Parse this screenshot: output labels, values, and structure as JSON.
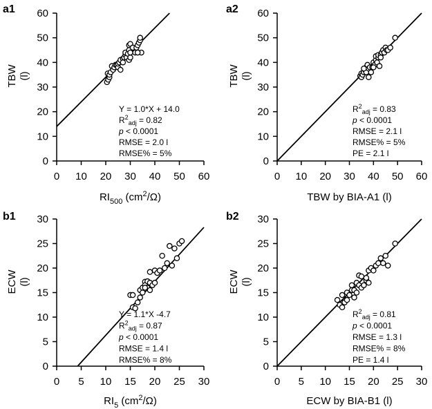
{
  "chart_data": [
    {
      "panel": "a1",
      "type": "scatter",
      "xlabel": "RI500 (cm2/Ω)",
      "xlabel_parts": {
        "base": "RI",
        "sub": "500",
        "rest1": " (cm",
        "sup": "2",
        "rest2": "/Ω)"
      },
      "ylabel_lines": [
        "TBW",
        "(l)"
      ],
      "xlim": [
        0,
        60
      ],
      "ylim": [
        0,
        60
      ],
      "xticks": [
        0,
        10,
        20,
        30,
        40,
        50,
        60
      ],
      "yticks": [
        0,
        10,
        20,
        30,
        40,
        50,
        60
      ],
      "line": {
        "slope": 1.0,
        "intercept": 14.0,
        "x_range": [
          0,
          46
        ]
      },
      "stats": [
        {
          "key": "eq",
          "text": "Y = 1.0*X + 14.0"
        },
        {
          "key": "r2",
          "pre": "R",
          "sup": "2",
          "sub": "adj",
          "post": " = 0.82"
        },
        {
          "key": "p",
          "italic": "p",
          "post": " < 0.0001"
        },
        {
          "key": "rmse",
          "text": "RMSE = 2.0 l"
        },
        {
          "key": "rmsep",
          "text": "RMSE% = 5%"
        }
      ],
      "points": [
        [
          20.5,
          32
        ],
        [
          21,
          33
        ],
        [
          21.5,
          34
        ],
        [
          20.8,
          35.5
        ],
        [
          21.5,
          35
        ],
        [
          22,
          36
        ],
        [
          22.5,
          38.5
        ],
        [
          23,
          37
        ],
        [
          23.5,
          38
        ],
        [
          24,
          39
        ],
        [
          24.5,
          39
        ],
        [
          25,
          38
        ],
        [
          25,
          39.5
        ],
        [
          25.5,
          40
        ],
        [
          26,
          37
        ],
        [
          26.5,
          40.5
        ],
        [
          26,
          41
        ],
        [
          27,
          41.5
        ],
        [
          27,
          40
        ],
        [
          27.5,
          42
        ],
        [
          28,
          43
        ],
        [
          28,
          44
        ],
        [
          28.5,
          42
        ],
        [
          29,
          43.5
        ],
        [
          29.5,
          41
        ],
        [
          30,
          42
        ],
        [
          29.5,
          45
        ],
        [
          29.5,
          47
        ],
        [
          30,
          47.5
        ],
        [
          31,
          46
        ],
        [
          32,
          44
        ],
        [
          32.5,
          46
        ],
        [
          33,
          47
        ],
        [
          33.5,
          48
        ],
        [
          34,
          49
        ],
        [
          34,
          50
        ],
        [
          34.5,
          44
        ],
        [
          33,
          44
        ],
        [
          30,
          44
        ]
      ]
    },
    {
      "panel": "a2",
      "type": "scatter",
      "xlabel": "TBW by BIA-A1 (l)",
      "ylabel_lines": [
        "TBW",
        "(l)"
      ],
      "xlim": [
        0,
        60
      ],
      "ylim": [
        0,
        60
      ],
      "xticks": [
        0,
        10,
        20,
        30,
        40,
        50,
        60
      ],
      "yticks": [
        0,
        10,
        20,
        30,
        40,
        50,
        60
      ],
      "line": {
        "slope": 1.0,
        "intercept": 0,
        "x_range": [
          0,
          60
        ]
      },
      "stats": [
        {
          "key": "r2",
          "pre": "R",
          "sup": "2",
          "sub": "adj",
          "post": " = 0.83"
        },
        {
          "key": "p",
          "italic": "p",
          "post": " < 0.0001"
        },
        {
          "key": "rmse",
          "text": "RMSE = 2.1 l"
        },
        {
          "key": "rmsep",
          "text": "RMSE% = 5%"
        },
        {
          "key": "pe",
          "text": "PE = 2.1 l"
        }
      ],
      "points": [
        [
          34.5,
          34.5
        ],
        [
          35,
          35.5
        ],
        [
          35,
          34
        ],
        [
          35.5,
          35
        ],
        [
          36,
          36
        ],
        [
          36.5,
          37
        ],
        [
          37,
          36
        ],
        [
          37,
          38
        ],
        [
          37.5,
          39
        ],
        [
          38,
          37.5
        ],
        [
          38.5,
          38
        ],
        [
          38,
          34
        ],
        [
          39,
          36
        ],
        [
          39.5,
          38
        ],
        [
          40,
          40
        ],
        [
          40.5,
          39
        ],
        [
          41,
          41
        ],
        [
          41,
          42.5
        ],
        [
          41.5,
          40
        ],
        [
          42,
          42
        ],
        [
          42.5,
          38.5
        ],
        [
          42,
          43
        ],
        [
          43,
          43
        ],
        [
          43.5,
          44
        ],
        [
          44,
          45
        ],
        [
          44.5,
          44
        ],
        [
          45,
          46
        ],
        [
          45.5,
          45
        ],
        [
          46,
          45
        ],
        [
          47,
          46
        ],
        [
          49,
          50
        ],
        [
          36,
          37.5
        ],
        [
          40,
          38
        ],
        [
          43,
          42
        ]
      ]
    },
    {
      "panel": "b1",
      "type": "scatter",
      "xlabel": "RI5 (cm2/Ω)",
      "xlabel_parts": {
        "base": "RI",
        "sub": "5",
        "rest1": " (cm",
        "sup": "2",
        "rest2": "/Ω)"
      },
      "ylabel_lines": [
        "ECW",
        "(l)"
      ],
      "xlim": [
        0,
        30
      ],
      "ylim": [
        0,
        30
      ],
      "xticks": [
        0,
        5,
        10,
        15,
        20,
        25,
        30
      ],
      "yticks": [
        0,
        5,
        10,
        15,
        20,
        25,
        30
      ],
      "line": {
        "slope": 1.1,
        "intercept": -4.7,
        "x_range": [
          4.3,
          30
        ]
      },
      "stats": [
        {
          "key": "eq",
          "text": "Y = 1.1*X -4.7"
        },
        {
          "key": "r2",
          "pre": "R",
          "sup": "2",
          "sub": "adj",
          "post": " = 0.87"
        },
        {
          "key": "p",
          "italic": "p",
          "post": " < 0.0001"
        },
        {
          "key": "rmse",
          "text": "RMSE = 1.4 l"
        },
        {
          "key": "rmsep",
          "text": "RMSE% = 8%"
        }
      ],
      "points": [
        [
          15,
          14.5
        ],
        [
          15.5,
          14.5
        ],
        [
          15.5,
          12
        ],
        [
          16,
          11.8
        ],
        [
          16.5,
          13
        ],
        [
          17,
          14
        ],
        [
          17,
          15.5
        ],
        [
          17.5,
          16
        ],
        [
          18,
          17.2
        ],
        [
          18,
          16.5
        ],
        [
          18.5,
          17.3
        ],
        [
          18.5,
          16
        ],
        [
          19,
          17
        ],
        [
          19,
          19.2
        ],
        [
          19.5,
          16.5
        ],
        [
          20,
          17
        ],
        [
          20,
          19.5
        ],
        [
          20.5,
          19
        ],
        [
          21,
          19.5
        ],
        [
          21.5,
          22.5
        ],
        [
          22,
          20
        ],
        [
          22.5,
          21
        ],
        [
          23,
          24.5
        ],
        [
          23.5,
          20.5
        ],
        [
          24,
          24
        ],
        [
          24.5,
          22
        ],
        [
          25,
          25
        ],
        [
          25.5,
          25.5
        ],
        [
          19,
          15.5
        ],
        [
          18,
          16
        ],
        [
          17.5,
          15
        ]
      ]
    },
    {
      "panel": "b2",
      "type": "scatter",
      "xlabel": "ECW by BIA-B1 (l)",
      "ylabel_lines": [
        "ECW",
        "(l)"
      ],
      "xlim": [
        0,
        30
      ],
      "ylim": [
        0,
        30
      ],
      "xticks": [
        0,
        5,
        10,
        15,
        20,
        25,
        30
      ],
      "yticks": [
        0,
        5,
        10,
        15,
        20,
        25,
        30
      ],
      "line": {
        "slope": 1.0,
        "intercept": 0,
        "x_range": [
          0,
          30
        ]
      },
      "stats": [
        {
          "key": "r2",
          "pre": "R",
          "sup": "2",
          "sub": "adj",
          "post": " = 0.81"
        },
        {
          "key": "p",
          "italic": "p",
          "post": " < 0.0001"
        },
        {
          "key": "rmse",
          "text": "RMSE = 1.3 l"
        },
        {
          "key": "rmsep",
          "text": "RMSE% = 8%"
        },
        {
          "key": "pe",
          "text": "PE = 1.4 l"
        }
      ],
      "points": [
        [
          12.5,
          13.5
        ],
        [
          13,
          12.5
        ],
        [
          13.5,
          12
        ],
        [
          13.5,
          14.5
        ],
        [
          14,
          13
        ],
        [
          14.5,
          13.5
        ],
        [
          14.5,
          15
        ],
        [
          15,
          14.5
        ],
        [
          15.5,
          15.5
        ],
        [
          15.5,
          16.5
        ],
        [
          16,
          14
        ],
        [
          16,
          15.5
        ],
        [
          16.5,
          15
        ],
        [
          16.5,
          17
        ],
        [
          17,
          16.5
        ],
        [
          17,
          18.5
        ],
        [
          17.5,
          18.3
        ],
        [
          17.5,
          16
        ],
        [
          18,
          16.5
        ],
        [
          18.5,
          17.5
        ],
        [
          18.5,
          18
        ],
        [
          19,
          19.5
        ],
        [
          19,
          17
        ],
        [
          19.5,
          20
        ],
        [
          20,
          19.5
        ],
        [
          20.5,
          20.5
        ],
        [
          21,
          21
        ],
        [
          21.5,
          22
        ],
        [
          22,
          21
        ],
        [
          22.5,
          22.5
        ],
        [
          23,
          20.5
        ],
        [
          24.5,
          25
        ]
      ]
    }
  ]
}
